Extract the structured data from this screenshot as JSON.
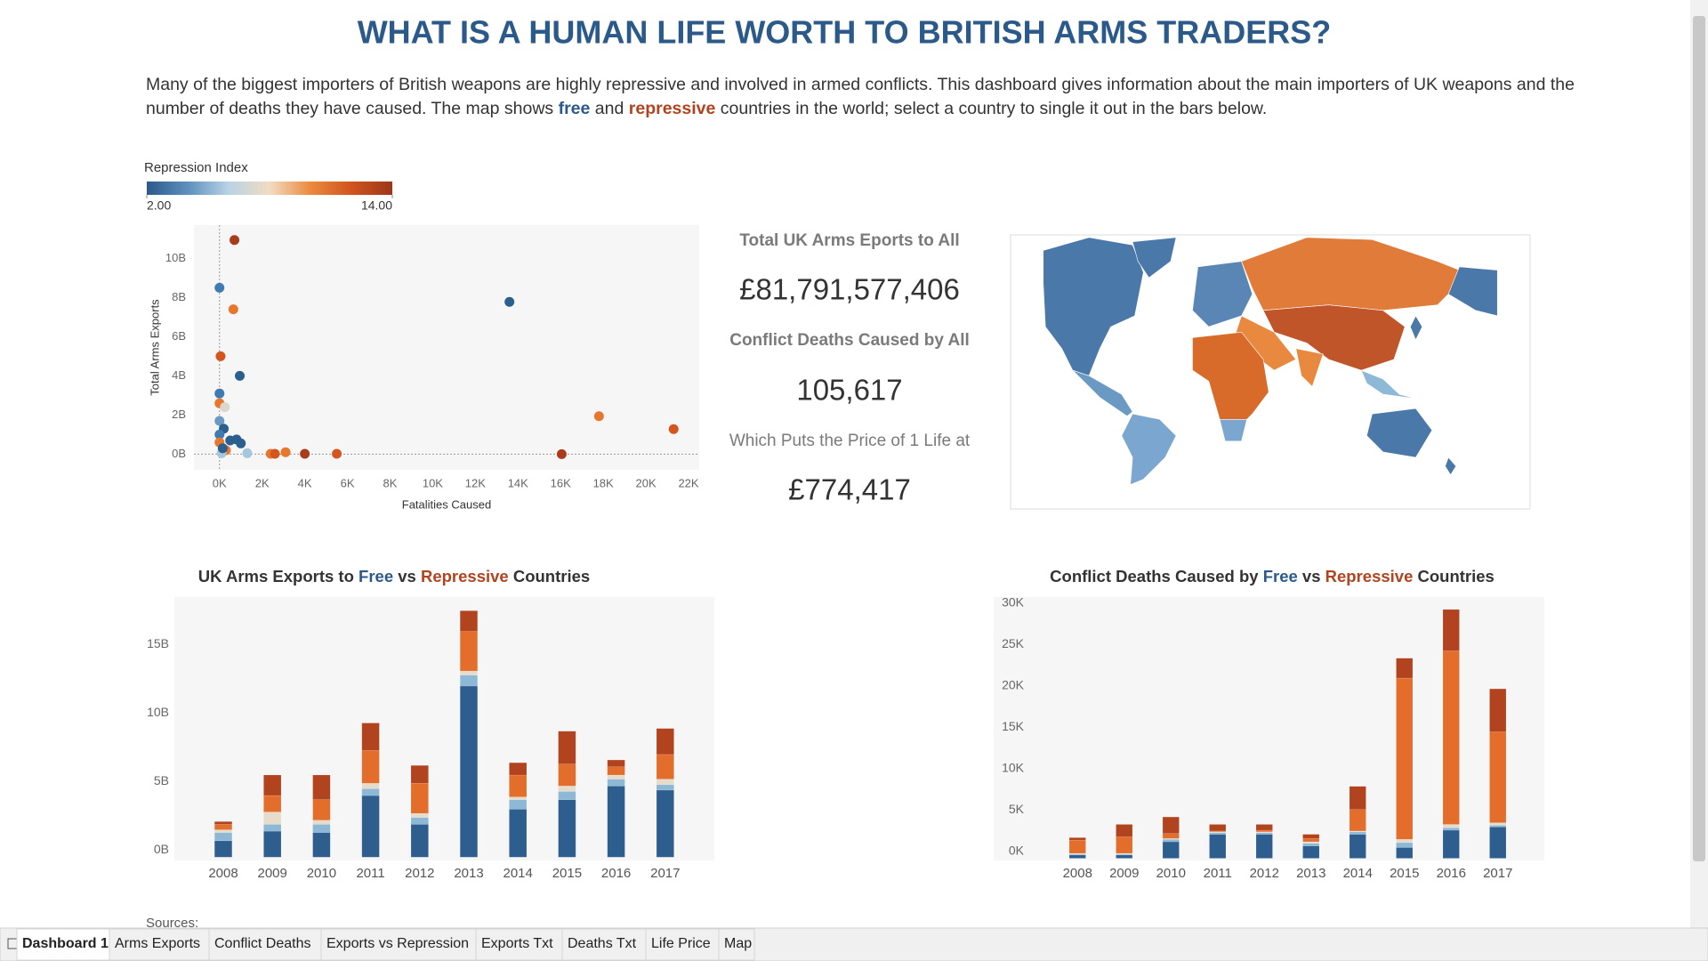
{
  "header": {
    "title": "WHAT IS A HUMAN LIFE WORTH TO BRITISH ARMS TRADERS?",
    "description": [
      "Many of the biggest importers of British weapons are highly repressive and involved in armed conflicts. This dashboard gives information about the main importers of UK weapons and the",
      "number of deaths they have caused. The map shows",
      "free",
      "and",
      "repressive",
      "countries in the world; select a country to single it out in the bars below."
    ]
  },
  "legend": {
    "title": "Repression Index",
    "ticks": [
      {
        "value": 2,
        "label": "2.00"
      },
      {
        "value": 14,
        "label": "14.00"
      }
    ],
    "colors": [
      "#2b5a8a",
      "#5e8fbd",
      "#b8d3e6",
      "#f1dcc2",
      "#eb8a3e",
      "#d0541f",
      "#9e3519"
    ]
  },
  "kpis": [
    {
      "label": "Total UK Arms Eports to All",
      "value": "£81,791,577,406"
    },
    {
      "label": "Conflict Deaths Caused by All",
      "value": "105,617"
    },
    {
      "label": "Which Puts the Price of 1 Life at",
      "value": "£774,417"
    }
  ],
  "chart_data": [
    {
      "type": "scatter",
      "x_label": "Fatalities Caused",
      "y_label": "Total Arms Exports",
      "x": [
        700,
        0,
        13600,
        650,
        50,
        950,
        0,
        0,
        250,
        17800,
        21300,
        16050,
        0,
        200,
        0,
        500,
        800,
        1000,
        0,
        300,
        100,
        1300,
        2400,
        2600,
        3100,
        4000,
        5500,
        150
      ],
      "values": [
        10940000000,
        8500000000,
        7780000000,
        7400000000,
        5000000000,
        4000000000,
        3100000000,
        2600000000,
        2400000000,
        1940000000,
        1280000000,
        0,
        1700000000,
        1300000000,
        1000000000,
        700000000,
        750000000,
        550000000,
        600000000,
        200000000,
        50000000,
        50000000,
        20000000,
        20000000,
        100000000,
        20000000,
        20000000,
        300000000
      ],
      "colors": [
        "#a83c1c",
        "#3e7bb0",
        "#2b5f8e",
        "#e8772e",
        "#d5561d",
        "#2b5f8e",
        "#3e7bb0",
        "#e8772e",
        "#dcd7cc",
        "#e8772e",
        "#d5561d",
        "#a83c1c",
        "#6a9ac4",
        "#2b5f8e",
        "#3e7bb0",
        "#2b5f8e",
        "#2b5f8e",
        "#2b5f8e",
        "#e8772e",
        "#e8772e",
        "#a3c7dd",
        "#a3c7dd",
        "#e8772e",
        "#d5561d",
        "#e8772e",
        "#a83c1c",
        "#d5561d",
        "#2b5f8e"
      ],
      "xlim": [
        -1200,
        22500
      ],
      "ylim": [
        -800000000,
        11700000000
      ],
      "xticks": [
        {
          "value": 0,
          "label": "0K"
        },
        {
          "value": 2000,
          "label": "2K"
        },
        {
          "value": 4000,
          "label": "4K"
        },
        {
          "value": 6000,
          "label": "6K"
        },
        {
          "value": 8000,
          "label": "8K"
        },
        {
          "value": 10000,
          "label": "10K"
        },
        {
          "value": 12000,
          "label": "12K"
        },
        {
          "value": 14000,
          "label": "14K"
        },
        {
          "value": 16000,
          "label": "16K"
        },
        {
          "value": 18000,
          "label": "18K"
        },
        {
          "value": 20000,
          "label": "20K"
        },
        {
          "value": 22000,
          "label": "22K"
        }
      ],
      "yticks": [
        {
          "value": 0,
          "label": "0B"
        },
        {
          "value": 2000000000,
          "label": "2B"
        },
        {
          "value": 4000000000,
          "label": "4B"
        },
        {
          "value": 6000000000,
          "label": "6B"
        },
        {
          "value": 8000000000,
          "label": "8B"
        },
        {
          "value": 10000000000,
          "label": "10B"
        }
      ]
    },
    {
      "type": "bar",
      "stacked": true,
      "title": [
        "UK Arms Exports to",
        "Free",
        "vs",
        "Repressive",
        "Countries"
      ],
      "categories": [
        "2008",
        "2009",
        "2010",
        "2011",
        "2012",
        "2013",
        "2014",
        "2015",
        "2016",
        "2017"
      ],
      "series": [
        {
          "color": "#2e5e8e",
          "values": [
            1200000000,
            1900000000,
            1800000000,
            4500000000,
            2400000000,
            12500000000,
            3500000000,
            4200000000,
            5200000000,
            4900000000
          ]
        },
        {
          "color": "#8db8d6",
          "values": [
            600000000,
            500000000,
            600000000,
            500000000,
            500000000,
            800000000,
            700000000,
            600000000,
            500000000,
            400000000
          ]
        },
        {
          "color": "#e6dccb",
          "values": [
            200000000,
            900000000,
            300000000,
            400000000,
            300000000,
            300000000,
            200000000,
            400000000,
            300000000,
            400000000
          ]
        },
        {
          "color": "#e36d2a",
          "values": [
            400000000,
            1200000000,
            1500000000,
            2400000000,
            2200000000,
            2900000000,
            1600000000,
            1600000000,
            600000000,
            1800000000
          ]
        },
        {
          "color": "#b2431f",
          "values": [
            200000000,
            1500000000,
            1800000000,
            2000000000,
            1300000000,
            1500000000,
            900000000,
            2400000000,
            500000000,
            1900000000
          ]
        }
      ],
      "ylim": [
        -240000000,
        19000000000
      ],
      "yticks": [
        {
          "value": 0,
          "label": "0B"
        },
        {
          "value": 5000000000,
          "label": "5B"
        },
        {
          "value": 10000000000,
          "label": "10B"
        },
        {
          "value": 15000000000,
          "label": "15B"
        }
      ]
    },
    {
      "type": "bar",
      "stacked": true,
      "title": [
        "Conflict Deaths Caused by",
        "Free",
        "vs",
        "Repressive",
        "Countries"
      ],
      "categories": [
        "2008",
        "2009",
        "2010",
        "2011",
        "2012",
        "2013",
        "2014",
        "2015",
        "2016",
        "2017"
      ],
      "series": [
        {
          "color": "#2e5e8e",
          "values": [
            400,
            400,
            2000,
            2900,
            2900,
            1500,
            2900,
            1300,
            3400,
            3800
          ]
        },
        {
          "color": "#8db8d6",
          "values": [
            100,
            100,
            300,
            200,
            200,
            300,
            300,
            600,
            300,
            200
          ]
        },
        {
          "color": "#e6dccb",
          "values": [
            100,
            100,
            100,
            100,
            100,
            200,
            100,
            400,
            400,
            300
          ]
        },
        {
          "color": "#e36d2a",
          "values": [
            1600,
            2000,
            600,
            100,
            200,
            400,
            2600,
            19500,
            21000,
            11000
          ]
        },
        {
          "color": "#b2431f",
          "values": [
            300,
            1500,
            2000,
            800,
            700,
            500,
            2800,
            2400,
            5000,
            5200
          ]
        }
      ],
      "ylim": [
        -260,
        31600
      ],
      "yticks": [
        {
          "value": 0,
          "label": "0K"
        },
        {
          "value": 5000,
          "label": "5K"
        },
        {
          "value": 10000,
          "label": "10K"
        },
        {
          "value": 15000,
          "label": "15K"
        },
        {
          "value": 20000,
          "label": "20K"
        },
        {
          "value": 25000,
          "label": "25K"
        },
        {
          "value": 30000,
          "label": "30K"
        }
      ]
    }
  ],
  "sources": "Sources:",
  "tabs": [
    "Dashboard 1",
    "Arms Exports",
    "Conflict Deaths",
    "Exports vs Repression",
    "Exports Txt",
    "Deaths Txt",
    "Life Price",
    "Map"
  ]
}
